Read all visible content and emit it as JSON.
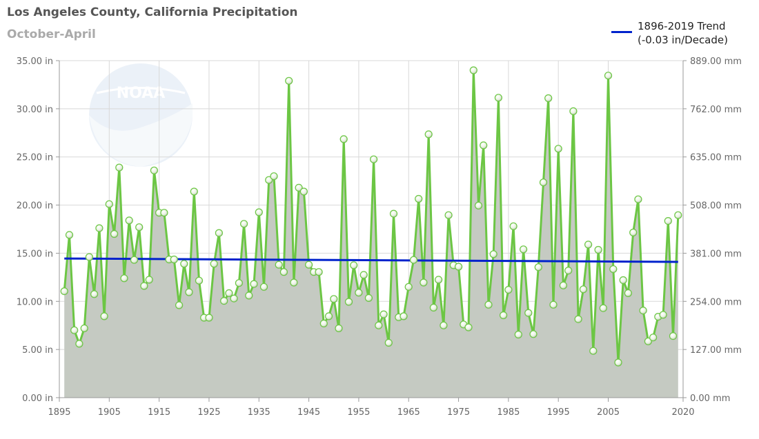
{
  "chart_data": {
    "type": "line",
    "title": "Los Angeles County, California Precipitation",
    "subtitle": "October-April",
    "series": [
      {
        "name": "precipitation",
        "color": "#6cc644",
        "x": [
          1896,
          1897,
          1898,
          1899,
          1900,
          1901,
          1902,
          1903,
          1904,
          1905,
          1906,
          1907,
          1908,
          1909,
          1910,
          1911,
          1912,
          1913,
          1914,
          1915,
          1916,
          1917,
          1918,
          1919,
          1920,
          1921,
          1922,
          1923,
          1924,
          1925,
          1926,
          1927,
          1928,
          1929,
          1930,
          1931,
          1932,
          1933,
          1934,
          1935,
          1936,
          1937,
          1938,
          1939,
          1940,
          1941,
          1942,
          1943,
          1944,
          1945,
          1946,
          1947,
          1948,
          1949,
          1950,
          1951,
          1952,
          1953,
          1954,
          1955,
          1956,
          1957,
          1958,
          1959,
          1960,
          1961,
          1962,
          1963,
          1964,
          1965,
          1966,
          1967,
          1968,
          1969,
          1970,
          1971,
          1972,
          1973,
          1974,
          1975,
          1976,
          1977,
          1978,
          1979,
          1980,
          1981,
          1982,
          1983,
          1984,
          1985,
          1986,
          1987,
          1988,
          1989,
          1990,
          1991,
          1992,
          1993,
          1994,
          1995,
          1996,
          1997,
          1998,
          1999,
          2000,
          2001,
          2002,
          2003,
          2004,
          2005,
          2006,
          2007,
          2008,
          2009,
          2010,
          2011,
          2012,
          2013,
          2014,
          2015,
          2016,
          2017,
          2018,
          2019
        ],
        "values": [
          11.05,
          16.9,
          7.0,
          5.6,
          7.2,
          14.6,
          10.75,
          17.6,
          8.45,
          20.1,
          17.0,
          23.9,
          12.4,
          18.4,
          14.3,
          17.7,
          11.6,
          12.25,
          23.6,
          19.2,
          19.2,
          14.35,
          14.35,
          9.6,
          13.9,
          10.95,
          21.4,
          12.15,
          8.3,
          8.3,
          13.9,
          17.1,
          10.05,
          10.85,
          10.3,
          11.9,
          18.05,
          10.6,
          11.8,
          19.25,
          11.5,
          22.6,
          23.0,
          13.8,
          13.05,
          32.9,
          11.95,
          21.8,
          21.4,
          13.8,
          13.05,
          13.05,
          7.7,
          8.45,
          10.25,
          7.2,
          26.85,
          9.95,
          13.75,
          10.9,
          12.75,
          10.35,
          24.75,
          7.5,
          8.65,
          5.7,
          19.1,
          8.35,
          8.45,
          11.5,
          14.3,
          20.65,
          11.95,
          27.35,
          9.35,
          12.25,
          7.5,
          18.95,
          13.75,
          13.6,
          7.6,
          7.3,
          34.0,
          19.95,
          26.2,
          9.65,
          14.9,
          31.15,
          8.55,
          11.2,
          17.8,
          6.55,
          15.4,
          8.8,
          6.6,
          13.55,
          22.35,
          31.1,
          9.65,
          25.85,
          11.65,
          13.2,
          29.75,
          8.15,
          11.25,
          15.9,
          4.85,
          15.35,
          9.3,
          33.45,
          13.35,
          3.65,
          12.2,
          10.85,
          17.15,
          20.6,
          9.05,
          5.85,
          6.25,
          8.4,
          8.6,
          18.35,
          6.4,
          18.95
        ]
      },
      {
        "name": "1896-2019 Trend",
        "color": "#0022cc",
        "x": [
          1896,
          2019
        ],
        "values": [
          14.45,
          14.1
        ]
      }
    ],
    "legend": {
      "line1": "1896-2019 Trend",
      "line2": "(-0.03 in/Decade)",
      "position": "top-right"
    },
    "xlim": [
      1895,
      2020
    ],
    "x_ticks": [
      1895,
      1905,
      1915,
      1925,
      1935,
      1945,
      1955,
      1965,
      1975,
      1985,
      1995,
      2005,
      2020
    ],
    "ylim": [
      0,
      35
    ],
    "y_ticks_left": [
      "0.00 in",
      "5.00 in",
      "10.00 in",
      "15.00 in",
      "20.00 in",
      "25.00 in",
      "30.00 in",
      "35.00 in"
    ],
    "y_ticks_right": [
      "0.00 mm",
      "127.00 mm",
      "254.00 mm",
      "381.00 mm",
      "508.00 mm",
      "635.00 mm",
      "762.00 mm",
      "889.00 mm"
    ],
    "grid": true,
    "area_fill": "#c5cac2"
  }
}
